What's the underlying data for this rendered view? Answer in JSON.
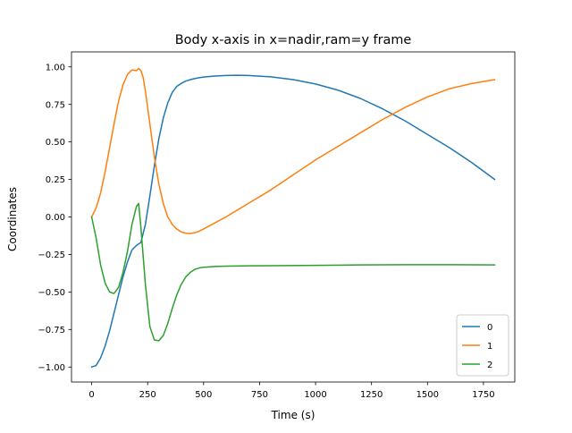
{
  "chart_data": {
    "type": "line",
    "title": "Body x-axis in x=nadir,ram=y frame",
    "xlabel": "Time (s)",
    "ylabel": "Coordinates",
    "xlim": [
      -90,
      1890
    ],
    "ylim": [
      -1.1,
      1.1
    ],
    "xticks": [
      0,
      250,
      500,
      750,
      1000,
      1250,
      1500,
      1750
    ],
    "yticks": [
      -1.0,
      -0.75,
      -0.5,
      -0.25,
      0.0,
      0.25,
      0.5,
      0.75,
      1.0
    ],
    "xtick_labels": [
      "0",
      "250",
      "500",
      "750",
      "1000",
      "1250",
      "1500",
      "1750"
    ],
    "ytick_labels": [
      "−1.00",
      "−0.75",
      "−0.50",
      "−0.25",
      "0.00",
      "0.25",
      "0.50",
      "0.75",
      "1.00"
    ],
    "grid": false,
    "legend_position": "lower right",
    "series": [
      {
        "name": "0",
        "color": "#1f77b4",
        "x": [
          0,
          20,
          40,
          60,
          80,
          100,
          120,
          140,
          160,
          180,
          200,
          220,
          240,
          260,
          280,
          300,
          320,
          340,
          360,
          380,
          400,
          420,
          440,
          460,
          480,
          500,
          550,
          600,
          650,
          700,
          800,
          900,
          1000,
          1100,
          1200,
          1300,
          1400,
          1500,
          1600,
          1700,
          1800
        ],
        "y": [
          -1.0,
          -0.99,
          -0.94,
          -0.86,
          -0.76,
          -0.64,
          -0.52,
          -0.4,
          -0.3,
          -0.22,
          -0.19,
          -0.17,
          -0.05,
          0.14,
          0.34,
          0.52,
          0.66,
          0.76,
          0.83,
          0.87,
          0.89,
          0.905,
          0.915,
          0.922,
          0.928,
          0.932,
          0.939,
          0.943,
          0.944,
          0.943,
          0.934,
          0.915,
          0.886,
          0.845,
          0.79,
          0.72,
          0.64,
          0.55,
          0.46,
          0.36,
          0.25
        ]
      },
      {
        "name": "1",
        "color": "#ff7f0e",
        "x": [
          0,
          20,
          40,
          60,
          80,
          100,
          120,
          140,
          160,
          180,
          200,
          210,
          220,
          230,
          240,
          260,
          280,
          300,
          320,
          340,
          360,
          380,
          400,
          420,
          440,
          460,
          480,
          500,
          550,
          600,
          700,
          800,
          900,
          1000,
          1100,
          1200,
          1300,
          1400,
          1500,
          1600,
          1700,
          1800
        ],
        "y": [
          0.0,
          0.06,
          0.16,
          0.3,
          0.46,
          0.62,
          0.77,
          0.88,
          0.95,
          0.98,
          0.975,
          0.99,
          0.975,
          0.93,
          0.84,
          0.62,
          0.4,
          0.22,
          0.09,
          0.0,
          -0.05,
          -0.08,
          -0.1,
          -0.108,
          -0.11,
          -0.105,
          -0.095,
          -0.08,
          -0.04,
          0.0,
          0.09,
          0.18,
          0.28,
          0.38,
          0.47,
          0.56,
          0.65,
          0.73,
          0.8,
          0.855,
          0.89,
          0.915
        ]
      },
      {
        "name": "2",
        "color": "#2ca02c",
        "x": [
          0,
          20,
          40,
          60,
          80,
          100,
          120,
          140,
          160,
          180,
          200,
          210,
          220,
          240,
          260,
          280,
          300,
          320,
          340,
          360,
          380,
          400,
          420,
          440,
          460,
          480,
          500,
          550,
          600,
          700,
          800,
          1000,
          1200,
          1400,
          1600,
          1800
        ],
        "y": [
          0.0,
          -0.14,
          -0.32,
          -0.44,
          -0.5,
          -0.51,
          -0.47,
          -0.37,
          -0.23,
          -0.05,
          0.07,
          0.09,
          -0.07,
          -0.45,
          -0.73,
          -0.82,
          -0.825,
          -0.79,
          -0.71,
          -0.61,
          -0.52,
          -0.45,
          -0.4,
          -0.37,
          -0.35,
          -0.34,
          -0.335,
          -0.33,
          -0.328,
          -0.326,
          -0.325,
          -0.323,
          -0.32,
          -0.318,
          -0.318,
          -0.32
        ]
      }
    ]
  }
}
